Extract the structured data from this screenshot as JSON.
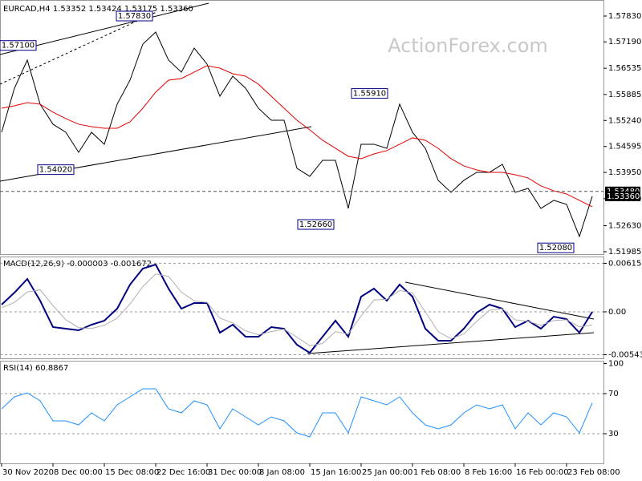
{
  "chart_data": [
    {
      "type": "line",
      "title": "EURCAD,H4 1.53352 1.53424 1.53175 1.53360",
      "watermark": "ActionForex.com",
      "ylim": [
        1.51905,
        1.58228
      ],
      "grid": false,
      "yticks": [
        {
          "value": 1.5783,
          "label": "1.57830"
        },
        {
          "value": 1.5719,
          "label": "1.57190"
        },
        {
          "value": 1.56535,
          "label": "1.56535"
        },
        {
          "value": 1.55885,
          "label": "1.55885"
        },
        {
          "value": 1.5524,
          "label": "1.55240"
        },
        {
          "value": 1.54595,
          "label": "1.54595"
        },
        {
          "value": 1.5395,
          "label": "1.53950"
        },
        {
          "value": 1.533,
          "label": "1.53300"
        },
        {
          "value": 1.5263,
          "label": "1.52630"
        },
        {
          "value": 1.51985,
          "label": "1.51985"
        }
      ],
      "series": [
        {
          "color": "#000000",
          "values": [
            1.54948,
            1.56041,
            1.56737,
            1.55644,
            1.55147,
            1.54948,
            1.54451,
            1.54948,
            1.5465,
            1.55644,
            1.5624,
            1.57135,
            1.57433,
            1.56737,
            1.56439,
            1.57035,
            1.56638,
            1.55842,
            1.56339,
            1.56041,
            1.55544,
            1.55246,
            1.55246,
            1.54053,
            1.53854,
            1.54252,
            1.54252,
            1.53059,
            1.5465,
            1.5465,
            1.5455,
            1.55644,
            1.54948,
            1.5455,
            1.53755,
            1.53457,
            1.53755,
            1.53954,
            1.53954,
            1.54153,
            1.53457,
            1.53556,
            1.53059,
            1.53258,
            1.53159,
            1.52363,
            1.5336
          ]
        },
        {
          "color": "#e00000",
          "values": [
            1.55544,
            1.55604,
            1.55683,
            1.55644,
            1.55445,
            1.55286,
            1.55147,
            1.55087,
            1.55047,
            1.55047,
            1.55206,
            1.55544,
            1.55942,
            1.5624,
            1.5628,
            1.56439,
            1.56598,
            1.56538,
            1.56399,
            1.56339,
            1.56141,
            1.55842,
            1.55544,
            1.55246,
            1.55007,
            1.54749,
            1.5455,
            1.54351,
            1.54292,
            1.54411,
            1.54491,
            1.5465,
            1.54809,
            1.54749,
            1.5455,
            1.54292,
            1.54113,
            1.54013,
            1.53954,
            1.53954,
            1.53894,
            1.53815,
            1.53616,
            1.53497,
            1.53417,
            1.53258,
            1.53099
          ]
        }
      ],
      "last_labels": [
        {
          "value": 1.5348,
          "label": "1.53480"
        },
        {
          "value": 1.5336,
          "label": "1.53360"
        }
      ],
      "annotations": [
        {
          "value": 1.5783,
          "label": "1.57830"
        },
        {
          "value": 1.571,
          "label": "1.57100"
        },
        {
          "value": 1.5402,
          "label": "1.54020"
        },
        {
          "value": 1.5591,
          "label": "1.55910"
        },
        {
          "value": 1.5266,
          "label": "1.52660"
        },
        {
          "value": 1.5208,
          "label": "1.52080"
        }
      ]
    },
    {
      "type": "line",
      "title": "MACD(12,26,9) -0.000003 -0.001672",
      "ylim": [
        -0.00589,
        0.00701
      ],
      "grid": true,
      "yticks": [
        0.006154,
        {
          "value": 0,
          "label": "0.00"
        },
        -0.005434
      ],
      "series": [
        {
          "color": "#000080",
          "values": [
            0.000914,
            0.002438,
            0.004166,
            0.001422,
            -0.00193,
            -0.002134,
            -0.002337,
            -0.001626,
            -0.001118,
            0.000406,
            0.003454,
            0.005486,
            0.005994,
            0.002946,
            0.000406,
            0.001118,
            0.001118,
            -0.002642,
            -0.001626,
            -0.00315,
            -0.00315,
            -0.00193,
            -0.002134,
            -0.004166,
            -0.005182,
            -0.00315,
            -0.001118,
            -0.00315,
            0.00193,
            0.002946,
            0.001422,
            0.003454,
            0.00193,
            -0.002134,
            -0.003658,
            -0.003658,
            -0.002134,
            -0.000102,
            0.000914,
            0.000406,
            -0.00193,
            -0.001118,
            -0.002134,
            -0.00061,
            -0.000914,
            -0.002642,
            -3e-06
          ]
        },
        {
          "color": "#b0b0b0",
          "values": [
            0.0005,
            0.0012,
            0.0025,
            0.0028,
            0.0008,
            -0.001,
            -0.002,
            -0.0021,
            -0.0017,
            -0.0008,
            0.001,
            0.0032,
            0.0048,
            0.0045,
            0.0025,
            0.0014,
            0.0012,
            -0.0008,
            -0.0014,
            -0.0024,
            -0.0029,
            -0.0025,
            -0.0022,
            -0.0032,
            -0.0043,
            -0.004,
            -0.0025,
            -0.0028,
            -0.0005,
            0.0015,
            0.0016,
            0.0027,
            0.0024,
            0,
            -0.0025,
            -0.0034,
            -0.0028,
            -0.0012,
            0.0002,
            0.0004,
            -0.001,
            -0.0012,
            -0.0017,
            -0.0011,
            -0.001,
            -0.0019,
            -0.001672
          ]
        }
      ]
    },
    {
      "type": "line",
      "title": "RSI(14) 60.8867",
      "ylim": [
        0.4,
        102.8
      ],
      "grid": true,
      "yticks": [
        100,
        70,
        30
      ],
      "categories": [
        "30 Nov 2020",
        null,
        null,
        null,
        "8 Dec 00:00",
        null,
        null,
        null,
        "15 Dec 08:00",
        null,
        null,
        null,
        "22 Dec 16:00",
        null,
        null,
        null,
        "31 Dec 00:00",
        null,
        null,
        null,
        "8 Jan 08:00",
        null,
        null,
        null,
        "15 Jan 16:00",
        null,
        null,
        null,
        "25 Jan 00:00",
        null,
        null,
        null,
        "1 Feb 08:00",
        null,
        null,
        null,
        "8 Feb 16:00",
        null,
        null,
        null,
        "16 Feb 00:00",
        null,
        null,
        null,
        "23 Feb 08:00",
        null,
        null
      ],
      "series": [
        {
          "color": "#1e90ff",
          "values": [
            54.8,
            66.8,
            70.8,
            62.8,
            42.8,
            42.8,
            38.8,
            50.8,
            42.8,
            58.8,
            66.8,
            74.8,
            74.8,
            54.8,
            50.8,
            62.8,
            58.8,
            34.8,
            54.8,
            46.8,
            38.8,
            46.8,
            42.8,
            30.8,
            26.8,
            50.8,
            50.8,
            30.8,
            66.8,
            62.8,
            58.8,
            66.8,
            50.8,
            38.8,
            34.8,
            38.8,
            50.8,
            58.8,
            54.8,
            58.8,
            34.8,
            50.8,
            38.8,
            50.8,
            46.8,
            30.8,
            60.8867
          ]
        }
      ]
    }
  ]
}
